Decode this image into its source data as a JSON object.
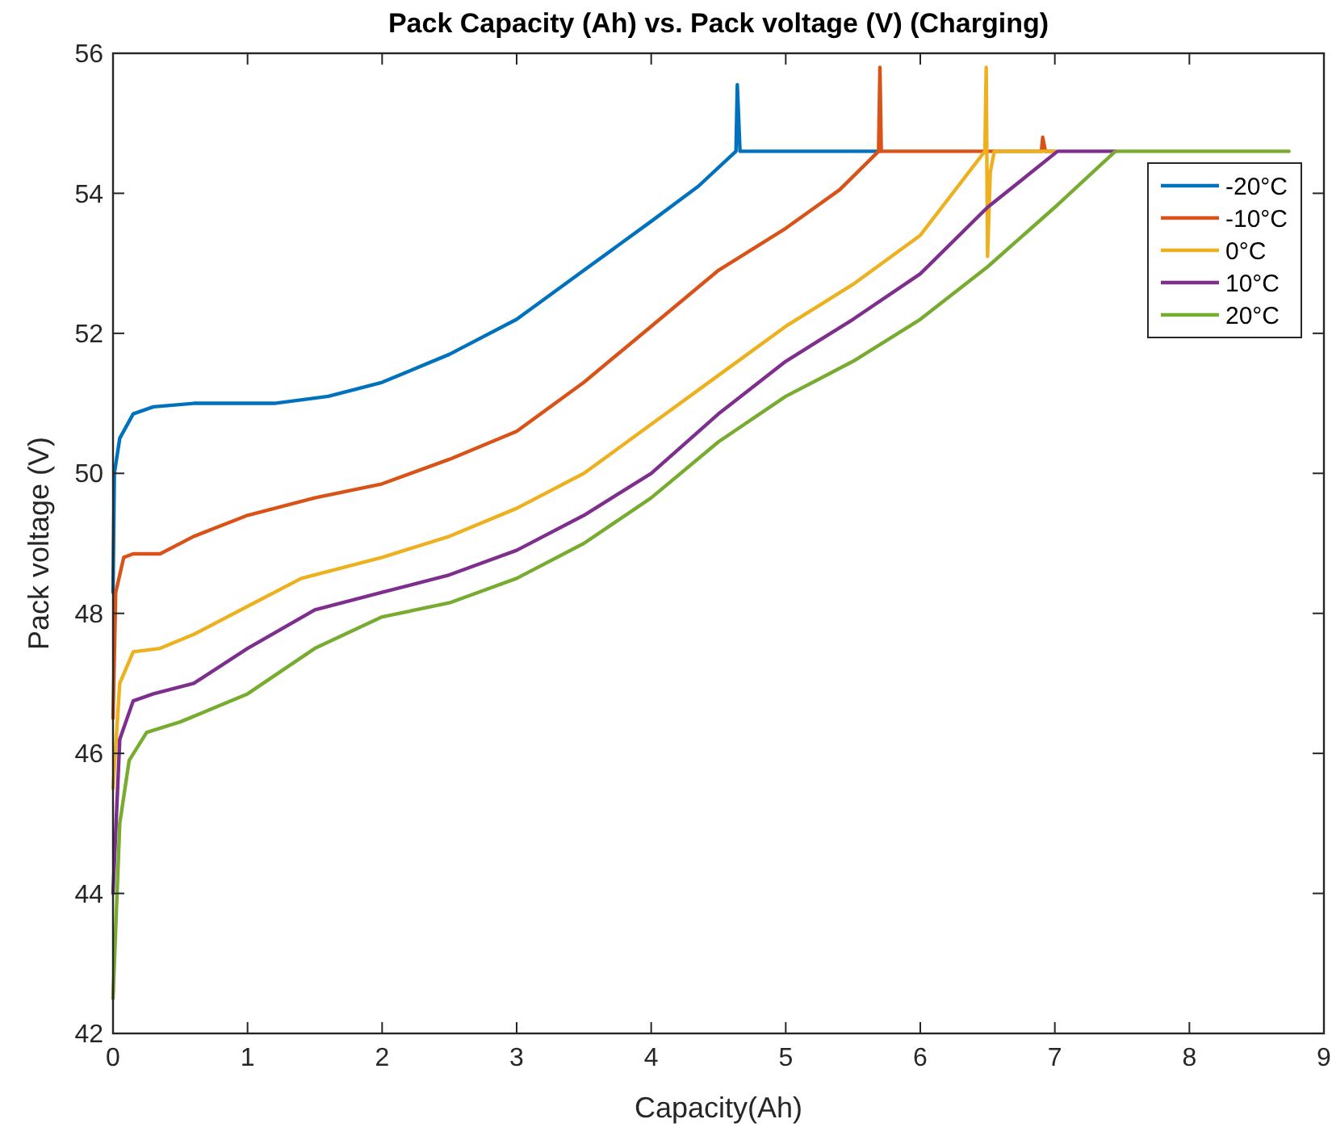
{
  "chart_data": {
    "type": "line",
    "title": "Pack Capacity (Ah) vs. Pack voltage (V) (Charging)",
    "xlabel": "Capacity(Ah)",
    "ylabel": "Pack voltage (V)",
    "xlim": [
      0,
      9
    ],
    "xticks": [
      0,
      1,
      2,
      3,
      4,
      5,
      6,
      7,
      8,
      9
    ],
    "ylim": [
      42,
      56
    ],
    "yticks": [
      42,
      44,
      46,
      48,
      50,
      52,
      54,
      56
    ],
    "grid": false,
    "legend": "top right",
    "marker": "none",
    "line_style": "solid",
    "series": [
      {
        "name": "-20°C",
        "color": "#0072bd",
        "x": [
          0,
          0.01,
          0.05,
          0.15,
          0.3,
          0.6,
          1.2,
          1.6,
          2,
          2.5,
          3,
          3.5,
          4,
          4.35,
          4.63,
          4.64,
          4.66,
          5.7
        ],
        "values": [
          48.3,
          50,
          50.5,
          50.85,
          50.95,
          51,
          51,
          51.1,
          51.3,
          51.7,
          52.2,
          52.9,
          53.6,
          54.1,
          54.6,
          55.55,
          54.6,
          54.6
        ]
      },
      {
        "name": "-10°C",
        "color": "#d95319",
        "x": [
          0,
          0.02,
          0.08,
          0.15,
          0.35,
          0.6,
          1,
          1.5,
          2,
          2.5,
          3,
          3.5,
          4,
          4.5,
          5,
          5.4,
          5.69,
          5.7,
          5.71,
          6.9,
          6.91,
          6.93,
          7
        ],
        "values": [
          46.5,
          48.3,
          48.8,
          48.85,
          48.85,
          49.1,
          49.4,
          49.65,
          49.85,
          50.2,
          50.6,
          51.3,
          52.1,
          52.9,
          53.5,
          54.05,
          54.6,
          55.8,
          54.6,
          54.6,
          54.8,
          54.6,
          54.6
        ]
      },
      {
        "name": "0°C",
        "color": "#edb120",
        "x": [
          0,
          0.05,
          0.15,
          0.35,
          0.6,
          1,
          1.4,
          2,
          2.5,
          3,
          3.5,
          4,
          4.5,
          5,
          5.5,
          6,
          6.48,
          6.49,
          6.5,
          6.52,
          6.55,
          7
        ],
        "values": [
          45.5,
          47,
          47.45,
          47.5,
          47.7,
          48.1,
          48.5,
          48.8,
          49.1,
          49.5,
          50,
          50.7,
          51.4,
          52.1,
          52.7,
          53.4,
          54.6,
          55.8,
          53.1,
          54.3,
          54.6,
          54.6
        ]
      },
      {
        "name": "10°C",
        "color": "#7e2f8e",
        "x": [
          0,
          0.05,
          0.15,
          0.3,
          0.6,
          1,
          1.5,
          2,
          2.5,
          3,
          3.5,
          4,
          4.5,
          5,
          5.5,
          6,
          6.5,
          7.02,
          7.45
        ],
        "values": [
          44,
          46.2,
          46.75,
          46.85,
          47,
          47.5,
          48.05,
          48.3,
          48.55,
          48.9,
          49.4,
          50,
          50.85,
          51.6,
          52.2,
          52.85,
          53.8,
          54.6,
          54.6
        ]
      },
      {
        "name": "20°C",
        "color": "#77ac30",
        "x": [
          0,
          0.05,
          0.12,
          0.25,
          0.5,
          1,
          1.5,
          2,
          2.5,
          3,
          3.5,
          4,
          4.5,
          5,
          5.5,
          6,
          6.5,
          7,
          7.45,
          8.74
        ],
        "values": [
          42.5,
          45,
          45.9,
          46.3,
          46.45,
          46.85,
          47.5,
          47.95,
          48.15,
          48.5,
          49,
          49.65,
          50.45,
          51.1,
          51.6,
          52.2,
          52.95,
          53.8,
          54.6,
          54.6
        ]
      }
    ]
  }
}
